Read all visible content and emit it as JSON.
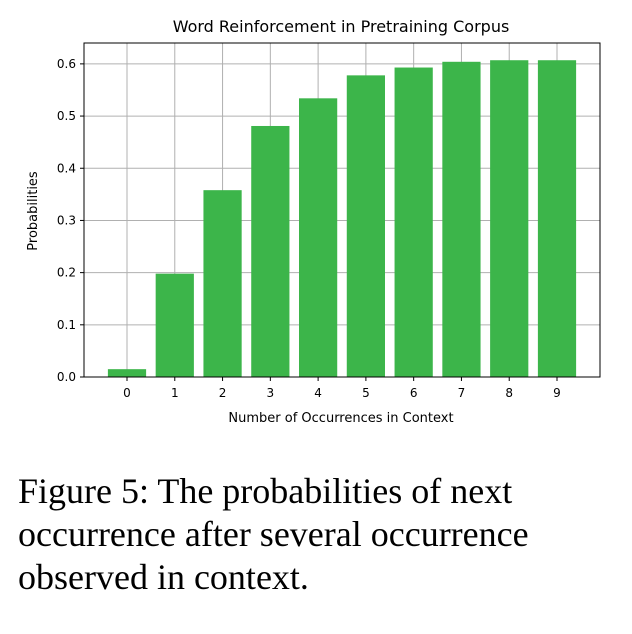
{
  "chart_data": {
    "type": "bar",
    "title": "Word Reinforcement in Pretraining Corpus",
    "xlabel": "Number of Occurrences in Context",
    "ylabel": "Probabilities",
    "categories": [
      "0",
      "1",
      "2",
      "3",
      "4",
      "5",
      "6",
      "7",
      "8",
      "9"
    ],
    "values": [
      0.015,
      0.198,
      0.358,
      0.481,
      0.534,
      0.578,
      0.593,
      0.604,
      0.607,
      0.607
    ],
    "ylim": [
      0,
      0.64
    ],
    "yticks": [
      "0.0",
      "0.1",
      "0.2",
      "0.3",
      "0.4",
      "0.5",
      "0.6"
    ],
    "grid": true,
    "bar_color": "#3cb54a"
  },
  "caption": "Figure 5: The probabilities of next occurrence after several occurrence observed in context."
}
